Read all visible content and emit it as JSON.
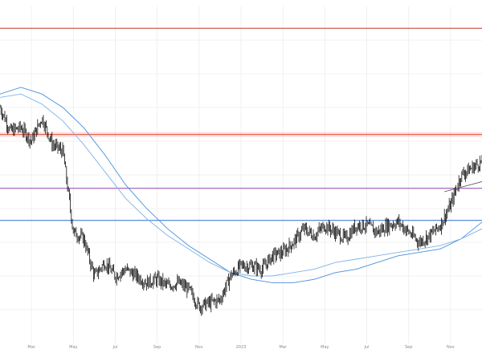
{
  "chart_data": {
    "type": "line",
    "subtype": "candlestick-price-chart",
    "title": "",
    "xlabel": "",
    "ylabel": "",
    "grid": true,
    "y_range": [
      0,
      100
    ],
    "x_tick_labels": [
      "Mar",
      "May",
      "Jul",
      "Sep",
      "Nov",
      "2023",
      "Mar",
      "May",
      "Jul",
      "Sep",
      "Nov"
    ],
    "x_tick_positions": [
      1.5,
      3.5,
      5.5,
      7.5,
      9.5,
      11.5,
      13.5,
      15.5,
      17.5,
      19.5,
      21.5
    ],
    "x_range": [
      0,
      23
    ],
    "price_series": {
      "name": "",
      "x": [
        0,
        0.5,
        1,
        1.5,
        2,
        2.5,
        3,
        3.5,
        4,
        4.5,
        5,
        5.5,
        6,
        6.5,
        7,
        7.5,
        8,
        8.5,
        9,
        9.5,
        10,
        10.5,
        11,
        11.5,
        12,
        12.5,
        13,
        13.5,
        14,
        14.5,
        15,
        15.5,
        16,
        16.5,
        17,
        17.5,
        18,
        18.5,
        19,
        19.5,
        20,
        20.5,
        21,
        21.5,
        22,
        22.5,
        23
      ],
      "close": [
        70,
        63,
        64,
        60,
        67,
        59,
        57,
        33,
        31,
        20,
        24,
        20,
        22,
        20,
        18,
        19,
        17,
        18,
        16,
        11,
        12,
        13,
        20,
        23,
        23,
        22,
        26,
        27,
        30,
        34,
        32,
        35,
        33,
        31,
        35,
        35,
        33,
        35,
        36,
        33,
        30,
        32,
        35,
        41,
        50,
        52,
        54
      ]
    },
    "moving_averages": [
      {
        "name": "",
        "color": "#4a90d9",
        "x": [
          0,
          1,
          2,
          3,
          4,
          5,
          6,
          7,
          8,
          9,
          10,
          11,
          12,
          13,
          14,
          15,
          16,
          17,
          18,
          19,
          20,
          21,
          22,
          23
        ],
        "values": [
          74,
          76,
          74,
          70,
          64,
          56,
          47,
          40,
          34,
          29,
          25,
          21,
          19,
          18,
          18,
          19,
          21,
          22,
          24,
          26,
          27,
          28,
          31,
          36
        ]
      },
      {
        "name": "",
        "color": "#7fb3e8",
        "x": [
          0,
          1,
          2,
          3,
          4,
          5,
          6,
          7,
          8,
          9,
          10,
          11,
          12,
          13,
          14,
          15,
          16,
          17,
          18,
          19,
          20,
          21,
          22,
          23
        ],
        "values": [
          73,
          74,
          71,
          66,
          59,
          51,
          43,
          37,
          32,
          28,
          24,
          21,
          20,
          20,
          21,
          22,
          24,
          25,
          26,
          27,
          28,
          29,
          31,
          34
        ]
      }
    ],
    "horizontal_lines": [
      {
        "y": 93.5,
        "color": "#c0392b"
      },
      {
        "y": 62.0,
        "color": "#e74c3c",
        "band": true
      },
      {
        "y": 46.0,
        "color": "#8e44ad"
      },
      {
        "y": 36.5,
        "color": "#2e6fd0"
      }
    ],
    "trend_line": {
      "x": [
        21.2,
        23
      ],
      "y": [
        45,
        48
      ],
      "color": "#555555"
    }
  }
}
